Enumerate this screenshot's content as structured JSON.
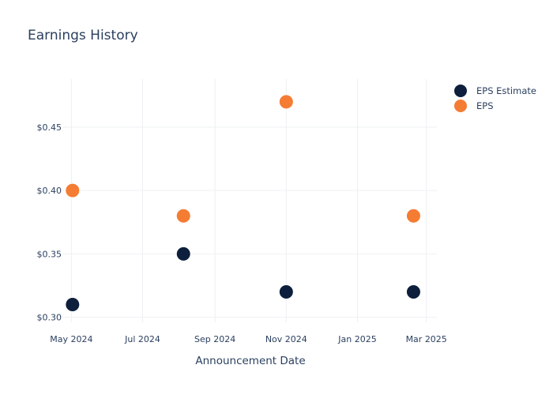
{
  "chart_data": {
    "type": "scatter",
    "title": "Earnings History",
    "xlabel": "Announcement Date",
    "ylabel": "",
    "x_axis_type": "date",
    "xlim": [
      "2024-04-24",
      "2025-03-10"
    ],
    "ylim": [
      0.296,
      0.488
    ],
    "x_ticks": [
      {
        "date": "2024-05-01",
        "label": "May 2024"
      },
      {
        "date": "2024-07-01",
        "label": "Jul 2024"
      },
      {
        "date": "2024-09-01",
        "label": "Sep 2024"
      },
      {
        "date": "2024-11-01",
        "label": "Nov 2024"
      },
      {
        "date": "2025-01-01",
        "label": "Jan 2025"
      },
      {
        "date": "2025-03-01",
        "label": "Mar 2025"
      }
    ],
    "y_ticks": [
      {
        "value": 0.3,
        "label": "$0.30"
      },
      {
        "value": 0.35,
        "label": "$0.35"
      },
      {
        "value": 0.4,
        "label": "$0.40"
      },
      {
        "value": 0.45,
        "label": "$0.45"
      }
    ],
    "grid": true,
    "legend_position": "top-right",
    "series": [
      {
        "name": "EPS Estimate",
        "color": "#0d1f3c",
        "points": [
          {
            "x": "2024-05-02",
            "y": 0.31
          },
          {
            "x": "2024-08-05",
            "y": 0.35
          },
          {
            "x": "2024-11-01",
            "y": 0.32
          },
          {
            "x": "2025-02-18",
            "y": 0.32
          }
        ]
      },
      {
        "name": "EPS",
        "color": "#f47c33",
        "points": [
          {
            "x": "2024-05-02",
            "y": 0.4
          },
          {
            "x": "2024-08-05",
            "y": 0.38
          },
          {
            "x": "2024-11-01",
            "y": 0.47
          },
          {
            "x": "2025-02-18",
            "y": 0.38
          }
        ]
      }
    ]
  }
}
